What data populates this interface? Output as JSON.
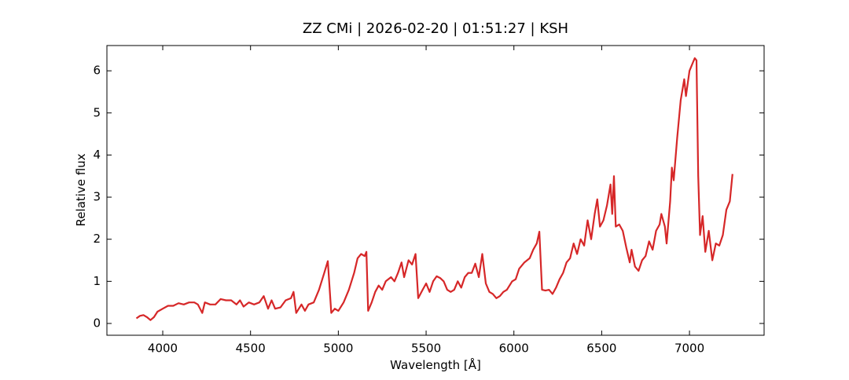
{
  "chart_data": {
    "type": "line",
    "title": "ZZ CMi | 2026-02-20 | 01:51:27 | KSH",
    "xlabel": "Wavelength [Å]",
    "ylabel": "Relative flux",
    "xlim": [
      3682,
      7425
    ],
    "ylim": [
      -0.28,
      6.6
    ],
    "xticks": [
      4000,
      4500,
      5000,
      5500,
      6000,
      6500,
      7000
    ],
    "yticks": [
      0,
      1,
      2,
      3,
      4,
      5,
      6
    ],
    "series": [
      {
        "color": "#d62728",
        "x": [
          3850,
          3870,
          3890,
          3910,
          3930,
          3950,
          3970,
          4000,
          4030,
          4060,
          4090,
          4120,
          4150,
          4180,
          4200,
          4225,
          4240,
          4270,
          4300,
          4330,
          4360,
          4390,
          4420,
          4440,
          4460,
          4490,
          4520,
          4550,
          4575,
          4600,
          4620,
          4640,
          4670,
          4700,
          4730,
          4745,
          4760,
          4790,
          4810,
          4830,
          4860,
          4890,
          4920,
          4940,
          4960,
          4980,
          5000,
          5030,
          5060,
          5090,
          5110,
          5130,
          5150,
          5160,
          5170,
          5190,
          5210,
          5230,
          5250,
          5270,
          5300,
          5320,
          5340,
          5360,
          5375,
          5400,
          5420,
          5440,
          5455,
          5480,
          5500,
          5520,
          5540,
          5560,
          5580,
          5600,
          5620,
          5640,
          5660,
          5680,
          5700,
          5720,
          5740,
          5760,
          5780,
          5800,
          5820,
          5840,
          5860,
          5880,
          5900,
          5920,
          5940,
          5960,
          5990,
          6010,
          6030,
          6060,
          6090,
          6110,
          6130,
          6145,
          6160,
          6180,
          6200,
          6220,
          6240,
          6260,
          6280,
          6300,
          6320,
          6340,
          6360,
          6380,
          6400,
          6420,
          6440,
          6460,
          6475,
          6490,
          6510,
          6530,
          6550,
          6560,
          6570,
          6580,
          6600,
          6620,
          6640,
          6660,
          6670,
          6690,
          6710,
          6730,
          6750,
          6770,
          6790,
          6810,
          6830,
          6840,
          6860,
          6870,
          6890,
          6900,
          6910,
          6930,
          6950,
          6970,
          6980,
          7000,
          7020,
          7030,
          7040,
          7050,
          7060,
          7075,
          7090,
          7110,
          7130,
          7150,
          7170,
          7190,
          7210,
          7230,
          7245
        ],
        "values": [
          0.12,
          0.18,
          0.2,
          0.15,
          0.08,
          0.15,
          0.28,
          0.35,
          0.42,
          0.42,
          0.48,
          0.45,
          0.5,
          0.5,
          0.45,
          0.25,
          0.5,
          0.45,
          0.45,
          0.58,
          0.55,
          0.55,
          0.45,
          0.55,
          0.4,
          0.5,
          0.45,
          0.5,
          0.65,
          0.35,
          0.55,
          0.35,
          0.38,
          0.55,
          0.6,
          0.75,
          0.25,
          0.45,
          0.3,
          0.45,
          0.5,
          0.8,
          1.2,
          1.48,
          0.25,
          0.35,
          0.3,
          0.5,
          0.8,
          1.2,
          1.55,
          1.65,
          1.6,
          1.7,
          0.3,
          0.5,
          0.75,
          0.9,
          0.8,
          1.0,
          1.1,
          1.0,
          1.2,
          1.45,
          1.1,
          1.5,
          1.4,
          1.65,
          0.6,
          0.8,
          0.95,
          0.75,
          1.0,
          1.12,
          1.08,
          1.0,
          0.8,
          0.75,
          0.8,
          1.0,
          0.85,
          1.1,
          1.2,
          1.2,
          1.42,
          1.1,
          1.65,
          0.95,
          0.75,
          0.7,
          0.6,
          0.65,
          0.75,
          0.8,
          1.0,
          1.05,
          1.3,
          1.45,
          1.55,
          1.75,
          1.9,
          2.18,
          0.8,
          0.78,
          0.8,
          0.7,
          0.85,
          1.05,
          1.2,
          1.45,
          1.55,
          1.9,
          1.65,
          2.0,
          1.85,
          2.45,
          2.0,
          2.6,
          2.95,
          2.3,
          2.45,
          2.8,
          3.3,
          2.6,
          3.5,
          2.3,
          2.35,
          2.2,
          1.8,
          1.45,
          1.75,
          1.35,
          1.25,
          1.5,
          1.6,
          1.95,
          1.75,
          2.2,
          2.35,
          2.6,
          2.3,
          1.9,
          2.9,
          3.7,
          3.4,
          4.4,
          5.3,
          5.8,
          5.4,
          6.0,
          6.2,
          6.3,
          6.25,
          3.5,
          2.1,
          2.55,
          1.7,
          2.2,
          1.5,
          1.9,
          1.85,
          2.1,
          2.7,
          2.9,
          3.55
        ]
      }
    ]
  }
}
